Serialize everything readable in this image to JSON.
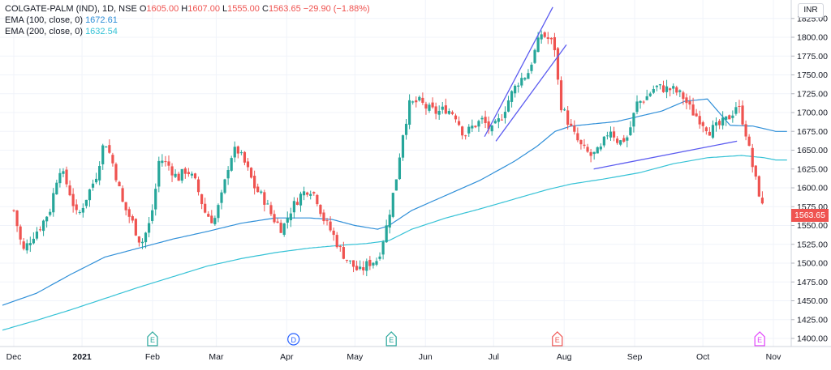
{
  "legend": {
    "symbol": "COLGATE-PALM (IND), 1D, NSE",
    "o_label": "O",
    "o_value": "1605.00",
    "h_label": "H",
    "h_value": "1607.00",
    "l_label": "L",
    "l_value": "1555.00",
    "c_label": "C",
    "c_value": "1563.65",
    "change": "−29.90 (−1.88%)",
    "ema100_label": "EMA (100, close, 0)",
    "ema100_value": "1672.61",
    "ema200_label": "EMA (200, close, 0)",
    "ema200_value": "1632.54"
  },
  "currency": "INR",
  "last_price": "1563.65",
  "colors": {
    "up": "#26a69a",
    "down": "#ef5350",
    "ema100": "#2f8fd8",
    "ema200": "#36c2d6",
    "trendline": "#5b5bf0",
    "grid": "#f0f3fa",
    "axis_text": "#131722"
  },
  "chart_data": {
    "type": "candlestick",
    "ylim": [
      1387,
      1842
    ],
    "y_ticks": [
      "1400.00",
      "1425.00",
      "1450.00",
      "1475.00",
      "1500.00",
      "1525.00",
      "1550.00",
      "1575.00",
      "1600.00",
      "1625.00",
      "1650.00",
      "1675.00",
      "1700.00",
      "1725.00",
      "1750.00",
      "1775.00",
      "1800.00",
      "1825.00"
    ],
    "x_ticks": [
      {
        "label": "Dec",
        "day": 0
      },
      {
        "label": "2021",
        "day": 30
      },
      {
        "label": "Feb",
        "day": 61
      },
      {
        "label": "Mar",
        "day": 89
      },
      {
        "label": "Apr",
        "day": 120
      },
      {
        "label": "May",
        "day": 150
      },
      {
        "label": "Jun",
        "day": 181
      },
      {
        "label": "Jul",
        "day": 211
      },
      {
        "label": "Aug",
        "day": 242
      },
      {
        "label": "Sep",
        "day": 273
      },
      {
        "label": "Oct",
        "day": 303
      },
      {
        "label": "Nov",
        "day": 334
      }
    ],
    "x_range_days": [
      -5,
      340
    ],
    "close_anchors": [
      [
        0,
        1570
      ],
      [
        4,
        1515
      ],
      [
        8,
        1535
      ],
      [
        12,
        1550
      ],
      [
        16,
        1572
      ],
      [
        20,
        1628
      ],
      [
        24,
        1600
      ],
      [
        28,
        1560
      ],
      [
        32,
        1588
      ],
      [
        36,
        1614
      ],
      [
        40,
        1665
      ],
      [
        44,
        1628
      ],
      [
        48,
        1578
      ],
      [
        52,
        1555
      ],
      [
        56,
        1525
      ],
      [
        60,
        1555
      ],
      [
        62,
        1590
      ],
      [
        64,
        1640
      ],
      [
        68,
        1630
      ],
      [
        72,
        1612
      ],
      [
        76,
        1625
      ],
      [
        80,
        1606
      ],
      [
        84,
        1568
      ],
      [
        88,
        1555
      ],
      [
        92,
        1595
      ],
      [
        95,
        1640
      ],
      [
        98,
        1652
      ],
      [
        102,
        1630
      ],
      [
        106,
        1600
      ],
      [
        110,
        1585
      ],
      [
        114,
        1560
      ],
      [
        118,
        1545
      ],
      [
        122,
        1572
      ],
      [
        126,
        1590
      ],
      [
        130,
        1600
      ],
      [
        133,
        1588
      ],
      [
        136,
        1560
      ],
      [
        140,
        1540
      ],
      [
        144,
        1515
      ],
      [
        148,
        1500
      ],
      [
        152,
        1488
      ],
      [
        156,
        1500
      ],
      [
        160,
        1505
      ],
      [
        164,
        1550
      ],
      [
        168,
        1610
      ],
      [
        171,
        1672
      ],
      [
        174,
        1710
      ],
      [
        178,
        1715
      ],
      [
        182,
        1705
      ],
      [
        186,
        1700
      ],
      [
        190,
        1705
      ],
      [
        194,
        1698
      ],
      [
        198,
        1670
      ],
      [
        202,
        1682
      ],
      [
        206,
        1690
      ],
      [
        210,
        1675
      ],
      [
        214,
        1692
      ],
      [
        218,
        1720
      ],
      [
        222,
        1742
      ],
      [
        226,
        1752
      ],
      [
        229,
        1780
      ],
      [
        232,
        1805
      ],
      [
        236,
        1795
      ],
      [
        238,
        1785
      ],
      [
        240,
        1715
      ],
      [
        242,
        1700
      ],
      [
        246,
        1672
      ],
      [
        250,
        1652
      ],
      [
        254,
        1642
      ],
      [
        258,
        1650
      ],
      [
        262,
        1680
      ],
      [
        266,
        1660
      ],
      [
        270,
        1668
      ],
      [
        274,
        1712
      ],
      [
        278,
        1720
      ],
      [
        282,
        1734
      ],
      [
        286,
        1732
      ],
      [
        290,
        1730
      ],
      [
        294,
        1722
      ],
      [
        298,
        1702
      ],
      [
        302,
        1690
      ],
      [
        306,
        1676
      ],
      [
        310,
        1682
      ],
      [
        314,
        1692
      ],
      [
        316,
        1700
      ],
      [
        318,
        1712
      ],
      [
        320,
        1695
      ],
      [
        322,
        1672
      ],
      [
        324,
        1640
      ],
      [
        326,
        1612
      ],
      [
        328,
        1590
      ],
      [
        330,
        1563.65
      ]
    ],
    "ema100_anchors": [
      [
        -5,
        1444
      ],
      [
        10,
        1460
      ],
      [
        25,
        1485
      ],
      [
        40,
        1508
      ],
      [
        55,
        1520
      ],
      [
        70,
        1532
      ],
      [
        85,
        1542
      ],
      [
        100,
        1553
      ],
      [
        115,
        1560
      ],
      [
        130,
        1560
      ],
      [
        140,
        1558
      ],
      [
        150,
        1550
      ],
      [
        160,
        1545
      ],
      [
        165,
        1550
      ],
      [
        175,
        1570
      ],
      [
        190,
        1590
      ],
      [
        205,
        1610
      ],
      [
        220,
        1635
      ],
      [
        230,
        1655
      ],
      [
        238,
        1675
      ],
      [
        245,
        1682
      ],
      [
        255,
        1685
      ],
      [
        265,
        1688
      ],
      [
        275,
        1695
      ],
      [
        285,
        1702
      ],
      [
        295,
        1715
      ],
      [
        305,
        1718
      ],
      [
        315,
        1683
      ],
      [
        325,
        1682
      ],
      [
        335,
        1675
      ]
    ],
    "ema200_anchors": [
      [
        -5,
        1411
      ],
      [
        10,
        1424
      ],
      [
        25,
        1438
      ],
      [
        40,
        1453
      ],
      [
        55,
        1468
      ],
      [
        70,
        1482
      ],
      [
        85,
        1496
      ],
      [
        100,
        1506
      ],
      [
        115,
        1514
      ],
      [
        130,
        1520
      ],
      [
        145,
        1524
      ],
      [
        155,
        1526
      ],
      [
        165,
        1530
      ],
      [
        175,
        1545
      ],
      [
        190,
        1560
      ],
      [
        205,
        1572
      ],
      [
        220,
        1585
      ],
      [
        235,
        1598
      ],
      [
        245,
        1605
      ],
      [
        260,
        1612
      ],
      [
        275,
        1620
      ],
      [
        290,
        1632
      ],
      [
        305,
        1640
      ],
      [
        320,
        1643
      ],
      [
        330,
        1640
      ],
      [
        335,
        1637
      ]
    ],
    "trendlines": [
      {
        "from": [
          207,
          1668
        ],
        "to": [
          237,
          1840
        ]
      },
      {
        "from": [
          212,
          1662
        ],
        "to": [
          243,
          1790
        ]
      },
      {
        "from": [
          255,
          1625
        ],
        "to": [
          318,
          1662
        ]
      }
    ],
    "earnings_markers": [
      {
        "letter": "E",
        "day": 61,
        "kind": "earnings-past"
      },
      {
        "letter": "D",
        "day": 123,
        "kind": "dividend"
      },
      {
        "letter": "E",
        "day": 166,
        "kind": "earnings-past"
      },
      {
        "letter": "E",
        "day": 239,
        "kind": "earnings-negative"
      },
      {
        "letter": "E",
        "day": 328,
        "kind": "earnings-upcoming"
      }
    ]
  }
}
